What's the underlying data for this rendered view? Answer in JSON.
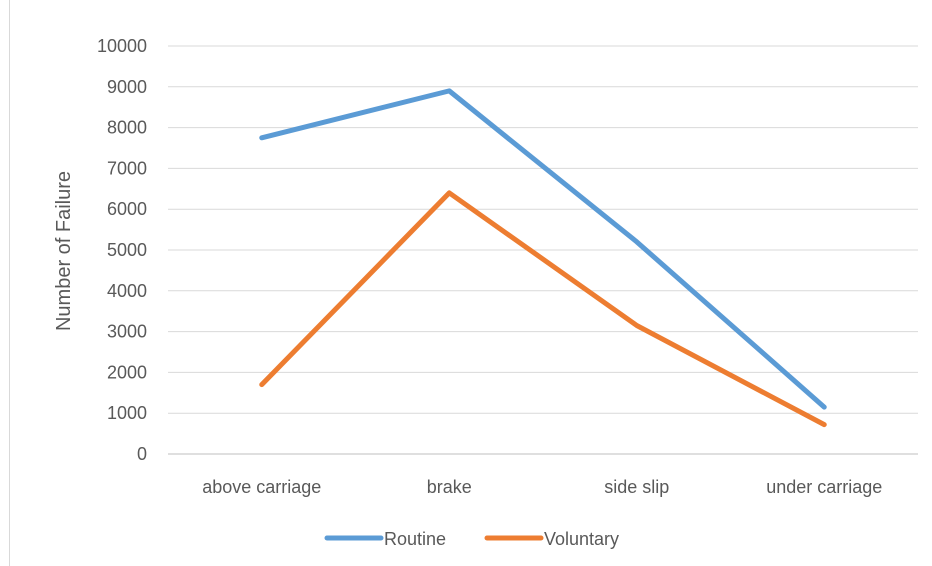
{
  "chart_data": {
    "type": "line",
    "title": "",
    "xlabel": "",
    "ylabel": "Number of Failure",
    "categories": [
      "above carriage",
      "brake",
      "side slip",
      "under carriage"
    ],
    "ylim": [
      0,
      10000
    ],
    "yticks": [
      0,
      1000,
      2000,
      3000,
      4000,
      5000,
      6000,
      7000,
      8000,
      9000,
      10000
    ],
    "grid": true,
    "legend_position": "bottom",
    "series": [
      {
        "name": "Routine",
        "color": "#5B9BD5",
        "values": [
          7750,
          8900,
          5200,
          1150
        ]
      },
      {
        "name": "Voluntary",
        "color": "#ED7D31",
        "values": [
          1700,
          6400,
          3150,
          720
        ]
      }
    ]
  }
}
